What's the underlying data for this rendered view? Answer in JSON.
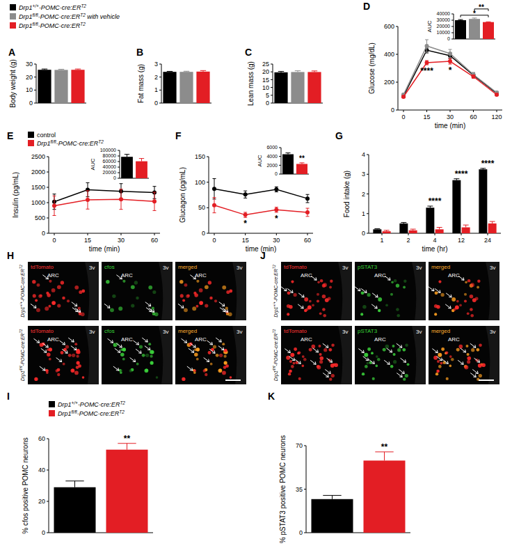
{
  "chart_data": [
    {
      "title": "A",
      "type": "bar",
      "ylabel": "Body weight (g)",
      "categories": [
        "Drp1+/+-POMC-cre:ERT2",
        "Drp1fl/fl-POMC-cre:ERT2 with vehicle",
        "Drp1fl/fl-POMC-cre:ERT2"
      ],
      "values": [
        25.6,
        25.5,
        25.6
      ],
      "errors": [
        0.6,
        0.5,
        0.6
      ],
      "colors": [
        "#000000",
        "#8c8c8c",
        "#e31e24"
      ],
      "ylim": [
        0,
        30
      ],
      "yticks": [
        0,
        10,
        20,
        30
      ],
      "tick_labels": "y",
      "legend": "top"
    },
    {
      "title": "B",
      "type": "bar",
      "ylabel": "Fat mass (g)",
      "categories": [
        null,
        null,
        null
      ],
      "values": [
        2.4,
        2.4,
        2.42
      ],
      "errors": [
        0.04,
        0.05,
        0.08
      ],
      "colors": [
        "#000000",
        "#8c8c8c",
        "#e31e24"
      ],
      "ylim": [
        0,
        3
      ],
      "yticks": [
        0,
        1,
        2,
        3
      ]
    },
    {
      "title": "C",
      "type": "bar",
      "ylabel": "Lean mass (g)",
      "categories": [
        null,
        null,
        null
      ],
      "values": [
        19.7,
        19.9,
        19.9
      ],
      "errors": [
        0.6,
        0.8,
        0.7
      ],
      "colors": [
        "#000000",
        "#8c8c8c",
        "#e31e24"
      ],
      "ylim": [
        0,
        25
      ],
      "yticks": [
        0,
        5,
        10,
        15,
        20,
        25
      ]
    },
    {
      "title": "D",
      "type": "line",
      "ylabel": "Glucose (mg/dL)",
      "xlabel": "time (min)",
      "categories": [
        "0",
        "15",
        "30",
        "60",
        "120"
      ],
      "series": [
        {
          "color": "#000000",
          "values": [
            100,
            430,
            390,
            250,
            120
          ],
          "errors": [
            10,
            20,
            20,
            15,
            10
          ]
        },
        {
          "color": "#8c8c8c",
          "values": [
            110,
            460,
            405,
            255,
            125
          ],
          "errors": [
            10,
            45,
            30,
            15,
            10
          ]
        },
        {
          "color": "#e31e24",
          "values": [
            95,
            340,
            350,
            240,
            110
          ],
          "errors": [
            8,
            15,
            20,
            12,
            8
          ]
        }
      ],
      "ylim": [
        0,
        600
      ],
      "yticks": [
        0,
        200,
        400,
        600
      ],
      "annotations": [
        {
          "text": "****",
          "index": 1
        },
        {
          "text": "*",
          "index": 2
        }
      ],
      "inset": {
        "type": "bar",
        "ylabel": "AUC",
        "categories": [
          null,
          null,
          null
        ],
        "values": [
          30000,
          32000,
          27000
        ],
        "errors": [
          1000,
          1500,
          400
        ],
        "colors": [
          "#000000",
          "#8c8c8c",
          "#e31e24"
        ],
        "ylim": [
          0,
          40000
        ],
        "yticks": [
          0,
          10000,
          20000,
          30000,
          40000
        ],
        "annotations": [
          {
            "text": "*",
            "from": 0,
            "to": 2
          },
          {
            "text": "**",
            "from": 1,
            "to": 2
          }
        ]
      }
    },
    {
      "title": "E",
      "type": "line",
      "ylabel": "Insulin (pg/mL)",
      "xlabel": "time (min)",
      "categories": [
        "0",
        "15",
        "30",
        "60"
      ],
      "series": [
        {
          "name": "control",
          "color": "#000000",
          "values": [
            1030,
            1420,
            1370,
            1330
          ],
          "errors": [
            250,
            230,
            250,
            200
          ]
        },
        {
          "name": "Drp1fl/fl-POMC-cre:ERT2",
          "color": "#e31e24",
          "values": [
            900,
            1090,
            1110,
            1040
          ],
          "errors": [
            320,
            300,
            330,
            300
          ]
        }
      ],
      "ylim": [
        0,
        2500
      ],
      "yticks": [
        0,
        500,
        1000,
        1500,
        2000,
        2500
      ],
      "legend": "top-left",
      "inset": {
        "type": "bar",
        "ylabel": "AUC",
        "categories": [
          null,
          null
        ],
        "values": [
          77000,
          61000
        ],
        "errors": [
          9000,
          10000
        ],
        "colors": [
          "#000000",
          "#e31e24"
        ],
        "ylim": [
          0,
          100000
        ],
        "yticks": [
          0,
          20000,
          40000,
          60000,
          80000,
          100000
        ]
      }
    },
    {
      "title": "F",
      "type": "line",
      "ylabel": "Glucagon (pg/mL)",
      "xlabel": "time (min)",
      "categories": [
        "0",
        "15",
        "30",
        "60"
      ],
      "series": [
        {
          "color": "#000000",
          "values": [
            87,
            76,
            86,
            68
          ],
          "errors": [
            20,
            7,
            5,
            8
          ]
        },
        {
          "color": "#e31e24",
          "values": [
            55,
            36,
            46,
            41
          ],
          "errors": [
            15,
            5,
            5,
            8
          ]
        }
      ],
      "ylim": [
        0,
        150
      ],
      "yticks": [
        0,
        50,
        100,
        150
      ],
      "annotations": [
        {
          "text": "*",
          "index": 1
        },
        {
          "text": "*",
          "index": 2
        }
      ],
      "inset": {
        "type": "bar",
        "ylabel": "AUC",
        "categories": [
          null,
          null
        ],
        "values": [
          4500,
          2300
        ],
        "errors": [
          300,
          250
        ],
        "colors": [
          "#000000",
          "#e31e24"
        ],
        "ylim": [
          0,
          6000
        ],
        "yticks": [
          0,
          2000,
          4000,
          6000
        ],
        "annotations": [
          {
            "text": "**",
            "index": 1
          }
        ]
      }
    },
    {
      "title": "G",
      "type": "bar",
      "ylabel": "Food intake (g)",
      "xlabel": "time (hr)",
      "categories": [
        "1",
        "2",
        "4",
        "12",
        "24"
      ],
      "series": [
        {
          "color": "#000000",
          "values": [
            0.2,
            0.5,
            1.3,
            2.7,
            3.25
          ],
          "errors": [
            0.03,
            0.05,
            0.08,
            0.07,
            0.05
          ]
        },
        {
          "color": "#e31e24",
          "values": [
            0.1,
            0.15,
            0.2,
            0.3,
            0.5
          ],
          "errors": [
            0.05,
            0.06,
            0.1,
            0.12,
            0.1
          ]
        }
      ],
      "ylim": [
        0,
        4
      ],
      "yticks": [
        0,
        1,
        2,
        3,
        4
      ],
      "annotations": [
        {
          "text": "****",
          "index": 2
        },
        {
          "text": "****",
          "index": 3
        },
        {
          "text": "****",
          "index": 4
        }
      ]
    },
    {
      "title": "I",
      "type": "bar",
      "ylabel": "% cfos positive POMC neurons",
      "categories": [
        "Drp1+/+-POMC-cre:ERT2",
        "Drp1fl/fl-POMC-cre:ERT2"
      ],
      "values": [
        29,
        53
      ],
      "errors": [
        4,
        4
      ],
      "colors": [
        "#000000",
        "#e31e24"
      ],
      "ylim": [
        0,
        60
      ],
      "yticks": [
        0,
        20,
        40,
        60
      ],
      "tick_labels": "y",
      "legend": "top",
      "annotations": [
        {
          "text": "**",
          "index": 1
        }
      ]
    },
    {
      "title": "K",
      "type": "bar",
      "ylabel": "% pSTAT3 positive POMC neurons",
      "categories": [
        null,
        null
      ],
      "values": [
        27,
        58
      ],
      "errors": [
        3,
        7
      ],
      "colors": [
        "#000000",
        "#e31e24"
      ],
      "ylim": [
        0,
        70
      ],
      "yticks": [
        0,
        35,
        70
      ],
      "annotations": [
        {
          "text": "**",
          "index": 1
        }
      ]
    }
  ],
  "micrographs": [
    {
      "title": "H",
      "channels": [
        "tdTomato",
        "cfos",
        "merged"
      ],
      "rows": [
        "Drp1+/+-POMC-cre:ERT2",
        "Drp1fl/fl-POMC-cre:ERT2"
      ],
      "region": "ARC",
      "ventricle": "3v"
    },
    {
      "title": "J",
      "channels": [
        "tdTomato",
        "pSTAT3",
        "merged"
      ],
      "rows": [
        "Drp1+/+-POMC-cre:ERT2",
        "Drp1fl/fl-POMC-cre:ERT2"
      ],
      "region": "ARC",
      "ventricle": "3v"
    }
  ]
}
